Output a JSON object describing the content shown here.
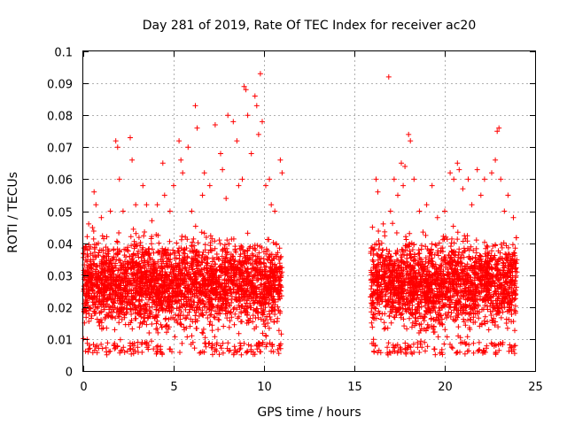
{
  "chart_data": {
    "type": "scatter",
    "title": "Day 281 of 2019, Rate Of TEC Index for receiver ac20",
    "xlabel": "GPS time / hours",
    "ylabel": "ROTI / TECUs",
    "xlim": [
      0,
      25
    ],
    "ylim": [
      0,
      0.1
    ],
    "x_ticks": [
      "0",
      "5",
      "10",
      "15",
      "20",
      "25"
    ],
    "y_ticks": [
      "0",
      "0.01",
      "0.02",
      "0.03",
      "0.04",
      "0.05",
      "0.06",
      "0.07",
      "0.08",
      "0.09",
      "0.1"
    ],
    "grid": true,
    "marker": "+",
    "color": "#ff0000",
    "series": [
      {
        "name": "ROTI",
        "segments": [
          {
            "x_start": 0.0,
            "x_end": 11.0,
            "typical_range": [
              0.008,
              0.045
            ]
          },
          {
            "x_start": 15.9,
            "x_end": 24.0,
            "typical_range": [
              0.008,
              0.045
            ]
          }
        ],
        "points": [
          [
            0.6,
            0.056
          ],
          [
            0.7,
            0.052
          ],
          [
            1.5,
            0.05
          ],
          [
            1.8,
            0.072
          ],
          [
            1.9,
            0.07
          ],
          [
            2.0,
            0.06
          ],
          [
            2.6,
            0.073
          ],
          [
            2.7,
            0.066
          ],
          [
            3.3,
            0.058
          ],
          [
            3.5,
            0.052
          ],
          [
            4.4,
            0.065
          ],
          [
            4.5,
            0.055
          ],
          [
            5.0,
            0.058
          ],
          [
            5.3,
            0.072
          ],
          [
            5.4,
            0.066
          ],
          [
            5.5,
            0.062
          ],
          [
            5.8,
            0.07
          ],
          [
            6.2,
            0.083
          ],
          [
            6.3,
            0.076
          ],
          [
            6.7,
            0.062
          ],
          [
            7.3,
            0.077
          ],
          [
            7.6,
            0.068
          ],
          [
            7.7,
            0.063
          ],
          [
            8.0,
            0.08
          ],
          [
            8.3,
            0.078
          ],
          [
            8.5,
            0.072
          ],
          [
            8.6,
            0.058
          ],
          [
            8.9,
            0.089
          ],
          [
            9.0,
            0.088
          ],
          [
            9.1,
            0.08
          ],
          [
            9.3,
            0.068
          ],
          [
            9.5,
            0.086
          ],
          [
            9.6,
            0.083
          ],
          [
            9.7,
            0.074
          ],
          [
            9.8,
            0.093
          ],
          [
            9.9,
            0.078
          ],
          [
            10.3,
            0.06
          ],
          [
            10.4,
            0.052
          ],
          [
            10.9,
            0.066
          ],
          [
            11.0,
            0.062
          ],
          [
            16.2,
            0.06
          ],
          [
            16.3,
            0.056
          ],
          [
            16.9,
            0.092
          ],
          [
            17.2,
            0.06
          ],
          [
            17.6,
            0.065
          ],
          [
            17.7,
            0.058
          ],
          [
            17.8,
            0.064
          ],
          [
            18.0,
            0.074
          ],
          [
            18.1,
            0.072
          ],
          [
            18.3,
            0.06
          ],
          [
            19.3,
            0.058
          ],
          [
            20.3,
            0.062
          ],
          [
            20.5,
            0.06
          ],
          [
            20.7,
            0.065
          ],
          [
            20.8,
            0.063
          ],
          [
            21.0,
            0.057
          ],
          [
            21.3,
            0.06
          ],
          [
            21.8,
            0.063
          ],
          [
            22.2,
            0.06
          ],
          [
            22.6,
            0.062
          ],
          [
            22.8,
            0.066
          ],
          [
            22.9,
            0.075
          ],
          [
            23.0,
            0.076
          ],
          [
            23.1,
            0.06
          ],
          [
            23.5,
            0.055
          ],
          [
            0.3,
            0.046
          ],
          [
            1.0,
            0.048
          ],
          [
            1.3,
            0.042
          ],
          [
            2.2,
            0.05
          ],
          [
            2.9,
            0.052
          ],
          [
            3.8,
            0.047
          ],
          [
            4.1,
            0.052
          ],
          [
            4.8,
            0.05
          ],
          [
            6.0,
            0.05
          ],
          [
            6.6,
            0.055
          ],
          [
            7.0,
            0.058
          ],
          [
            7.9,
            0.054
          ],
          [
            8.8,
            0.06
          ],
          [
            10.1,
            0.058
          ],
          [
            10.6,
            0.05
          ],
          [
            16.0,
            0.045
          ],
          [
            16.6,
            0.046
          ],
          [
            17.0,
            0.05
          ],
          [
            17.4,
            0.055
          ],
          [
            18.6,
            0.05
          ],
          [
            19.0,
            0.052
          ],
          [
            19.6,
            0.048
          ],
          [
            20.0,
            0.05
          ],
          [
            21.5,
            0.052
          ],
          [
            22.0,
            0.055
          ],
          [
            23.3,
            0.05
          ],
          [
            23.8,
            0.048
          ]
        ]
      }
    ]
  }
}
